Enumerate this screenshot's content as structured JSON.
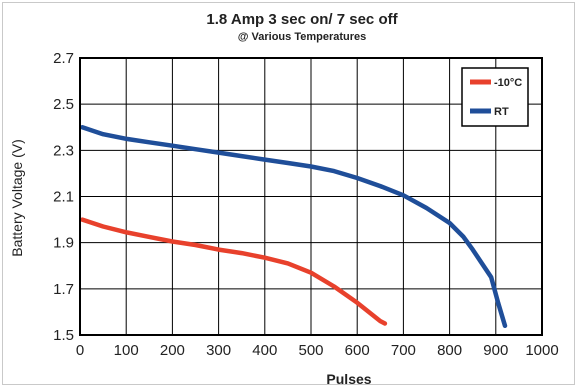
{
  "chart_data": {
    "type": "line",
    "title": "1.8 Amp 3 sec on/ 7 sec off",
    "subtitle": "@ Various Temperatures",
    "xlabel": "Pulses",
    "ylabel": "Battery Voltage (V)",
    "xlim": [
      0,
      1000
    ],
    "ylim": [
      1.5,
      2.7
    ],
    "xticks": [
      "0",
      "100",
      "200",
      "300",
      "400",
      "500",
      "600",
      "700",
      "800",
      "900",
      "1000"
    ],
    "yticks": [
      "1.5",
      "1.7",
      "1.9",
      "2.1",
      "2.3",
      "2.5",
      "2.7"
    ],
    "grid": true,
    "legend_position": "top-right",
    "series": [
      {
        "name": "-10°C",
        "color": "#e8412c",
        "x": [
          5,
          50,
          100,
          150,
          200,
          250,
          300,
          350,
          400,
          450,
          500,
          550,
          600,
          650,
          660
        ],
        "y": [
          2.0,
          1.97,
          1.945,
          1.925,
          1.905,
          1.89,
          1.87,
          1.855,
          1.835,
          1.81,
          1.77,
          1.71,
          1.64,
          1.56,
          1.55
        ]
      },
      {
        "name": "RT",
        "color": "#1f4e99",
        "x": [
          5,
          50,
          100,
          150,
          200,
          250,
          300,
          350,
          400,
          450,
          500,
          550,
          600,
          650,
          700,
          750,
          800,
          830,
          850,
          870,
          890,
          905,
          920
        ],
        "y": [
          2.4,
          2.37,
          2.35,
          2.335,
          2.32,
          2.305,
          2.29,
          2.275,
          2.26,
          2.245,
          2.23,
          2.21,
          2.18,
          2.145,
          2.105,
          2.05,
          1.985,
          1.925,
          1.87,
          1.81,
          1.75,
          1.64,
          1.54
        ]
      }
    ]
  }
}
